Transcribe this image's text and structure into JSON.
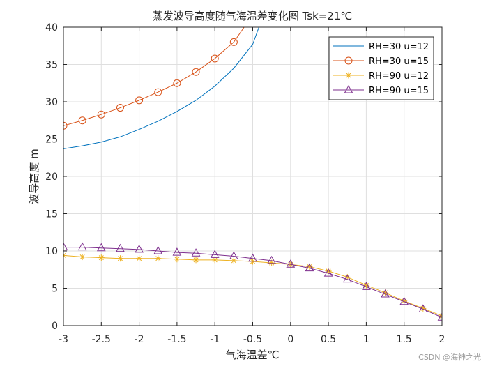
{
  "chart_data": {
    "type": "line",
    "title": "蒸发波导高度随气海温差变化图 Tsk=21℃",
    "xlabel": "气海温差℃",
    "ylabel": "波导高度 m",
    "xlim": [
      -3,
      2
    ],
    "ylim": [
      0,
      40
    ],
    "xticks": [
      -3,
      -2.5,
      -2,
      -1.5,
      -1,
      -0.5,
      0,
      0.5,
      1,
      1.5,
      2
    ],
    "yticks": [
      0,
      5,
      10,
      15,
      20,
      25,
      30,
      35,
      40
    ],
    "grid": true,
    "legend_position": "top-right",
    "series": [
      {
        "name": "RH=30 u=12",
        "color": "#0072BD",
        "marker": "none",
        "x": [
          -3,
          -2.75,
          -2.5,
          -2.25,
          -2,
          -1.75,
          -1.5,
          -1.25,
          -1,
          -0.75,
          -0.5,
          -0.4
        ],
        "y": [
          23.7,
          24.1,
          24.6,
          25.3,
          26.3,
          27.4,
          28.7,
          30.2,
          32.1,
          34.5,
          37.7,
          40.5
        ]
      },
      {
        "name": "RH=30 u=15",
        "color": "#D95319",
        "marker": "circle",
        "x": [
          -3,
          -2.75,
          -2.5,
          -2.25,
          -2,
          -1.75,
          -1.5,
          -1.25,
          -1,
          -0.75,
          -0.6
        ],
        "y": [
          26.8,
          27.5,
          28.3,
          29.2,
          30.2,
          31.3,
          32.5,
          34.0,
          35.8,
          38.0,
          40.2
        ]
      },
      {
        "name": "RH=90 u=12",
        "color": "#EDB120",
        "marker": "asterisk",
        "x": [
          -3,
          -2.75,
          -2.5,
          -2.25,
          -2,
          -1.75,
          -1.5,
          -1.25,
          -1,
          -0.75,
          -0.5,
          -0.25,
          0,
          0.25,
          0.5,
          0.75,
          1,
          1.25,
          1.5,
          1.75,
          2
        ],
        "y": [
          9.4,
          9.2,
          9.1,
          9.0,
          9.0,
          9.0,
          8.9,
          8.8,
          8.8,
          8.7,
          8.6,
          8.4,
          8.2,
          7.9,
          7.3,
          6.5,
          5.4,
          4.4,
          3.3,
          2.3,
          1.3
        ]
      },
      {
        "name": "RH=90 u=15",
        "color": "#7E2F8E",
        "marker": "triangle",
        "x": [
          -3,
          -2.75,
          -2.5,
          -2.25,
          -2,
          -1.75,
          -1.5,
          -1.25,
          -1,
          -0.75,
          -0.5,
          -0.25,
          0,
          0.25,
          0.5,
          0.75,
          1,
          1.25,
          1.5,
          1.75,
          2
        ],
        "y": [
          10.5,
          10.5,
          10.4,
          10.3,
          10.2,
          10.0,
          9.8,
          9.7,
          9.5,
          9.3,
          9.0,
          8.7,
          8.2,
          7.7,
          7.0,
          6.2,
          5.2,
          4.2,
          3.2,
          2.2,
          1.1
        ]
      }
    ]
  },
  "watermark": "CSDN @海神之光"
}
